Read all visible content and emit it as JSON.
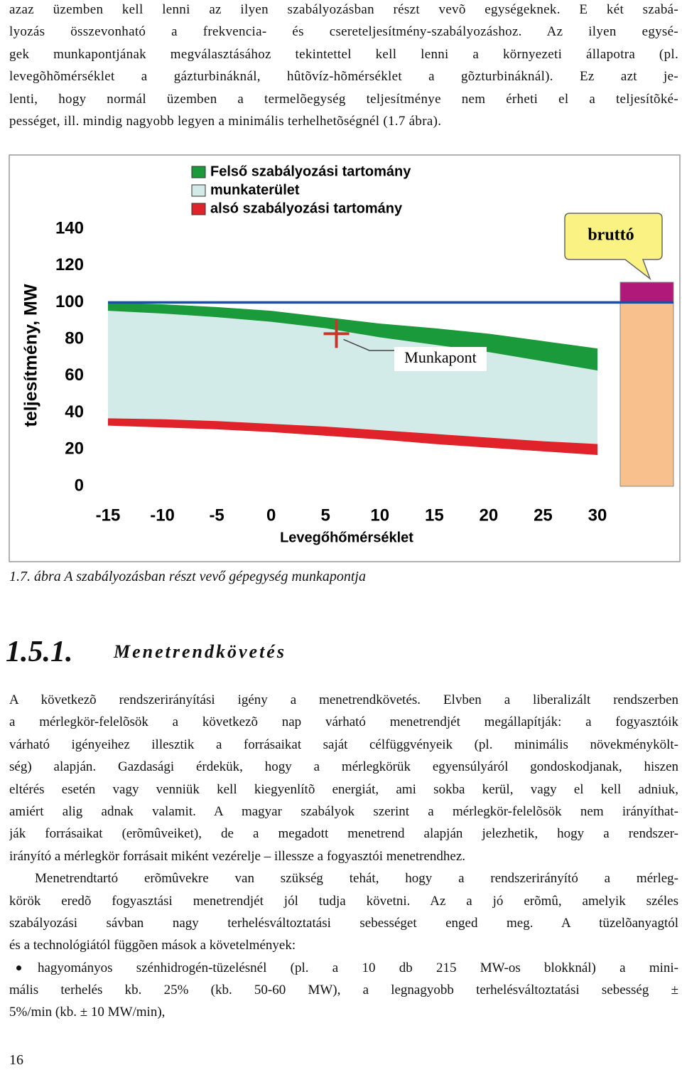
{
  "intro": {
    "lines": [
      "azaz üzemben kell lenni az ilyen szabályozásban részt vevõ egységeknek. E két szabá-",
      "lyozás összevonható a frekvencia- és csereteljesítmény-szabályozáshoz. Az ilyen egysé-",
      "gek munkapontjának megválasztásához tekintettel kell lenni a környezeti állapotra (pl.",
      "levegõhõmérséklet a gázturbináknál, hûtõvíz-hõmérséklet a gõzturbináknál). Ez azt je-",
      "lenti, hogy normál üzemben a termelõegység teljesítménye nem érheti el a teljesítõké-",
      "pességet, ill. mindig nagyobb legyen a minimális terhelhetõségnél (1.7 ábra)."
    ]
  },
  "chart_data": {
    "type": "band",
    "ylabel": "teljesítmény, MW",
    "xlabel": "Levegőhőmérséklet",
    "x": [
      -15,
      -10,
      -5,
      0,
      5,
      10,
      15,
      20,
      25,
      30
    ],
    "series": [
      {
        "name": "Felső szabályozási tartomány",
        "color": "#1a9a3a",
        "upper": [
          100,
          99,
          97.5,
          95.5,
          92,
          88.5,
          86,
          83,
          79,
          75
        ],
        "lower": [
          95.5,
          94,
          92,
          89.5,
          86,
          81,
          77,
          73,
          68,
          63
        ]
      },
      {
        "name": "munkaterület",
        "color": "#d3ebe8"
      },
      {
        "name": "alsó szabályozási tartomány",
        "color": "#e0222b",
        "upper": [
          37,
          36.5,
          35.5,
          34,
          32.5,
          30.5,
          28.5,
          26.5,
          24.5,
          23
        ],
        "lower": [
          33,
          32,
          31,
          29.5,
          27.5,
          25.5,
          23,
          21,
          19,
          17
        ]
      }
    ],
    "reference_line": {
      "value": 100,
      "color": "#1f4e9c"
    },
    "point": {
      "label": "Munkapont",
      "x": 6,
      "y": 83,
      "color": "#c0392b"
    },
    "gross_bar": {
      "label": "bruttó",
      "values": [
        100,
        11
      ],
      "colors": [
        "#f7c08c",
        "#b0197a"
      ]
    },
    "xlim": [
      -15,
      30
    ],
    "ylim": [
      0,
      140
    ],
    "xticks": [
      -15,
      -10,
      -5,
      0,
      5,
      10,
      15,
      20,
      25,
      30
    ],
    "yticks": [
      0,
      20,
      40,
      60,
      80,
      100,
      120,
      140
    ]
  },
  "caption": "1.7. ábra A szabályozásban részt vevő gépegység munkapontja",
  "section": {
    "number": "1.5.1.",
    "title": "Menetrendkövetés"
  },
  "body": {
    "paragraphs": [
      [
        "A következõ rendszerirányítási igény a menetrendkövetés. Elvben a liberalizált rendszerben",
        "a mérlegkör-felelõsök a következõ nap várható menetrendjét megállapítják: a fogyasztóik",
        "várható igényeihez illesztik a forrásaikat saját célfüggvényeik (pl. minimális növekménykölt-",
        "ség) alapján. Gazdasági érdekük, hogy a mérlegkörük egyensúlyáról gondoskodjanak, hiszen",
        "eltérés esetén vagy venniük kell kiegyenlítõ energiát, ami sokba kerül, vagy el kell adniuk,",
        "amiért alig adnak valamit. A magyar szabályok szerint a mérlegkör-felelõsök nem irányíthat-",
        "ják forrásaikat (erõmûveiket), de a megadott menetrend alapján jelezhetik, hogy a rendszer-",
        "irányító a mérlegkör forrásait miként vezérelje – illessze a fogyasztói menetrendhez."
      ],
      [
        "Menetrendtartó erõmûvekre van szükség tehát, hogy a rendszerirányító a mérleg-",
        "körök eredõ fogyasztási menetrendjét jól tudja követni. Az a jó erõmû, amelyik széles",
        "szabályozási sávban nagy terhelésváltoztatási sebességet enged meg. A tüzelõanyagtól",
        "és a technológiától függõen mások a követelmények:"
      ]
    ],
    "list": [
      [
        "hagyományos szénhidrogén-tüzelésnél (pl. a 10 db 215 MW-os blokknál) a mini-",
        "mális terhelés kb. 25% (kb. 50-60 MW), a legnagyobb terhelésváltoztatási sebesség ±",
        "5%/min (kb. ± 10 MW/min),"
      ]
    ]
  },
  "page_number": "16"
}
